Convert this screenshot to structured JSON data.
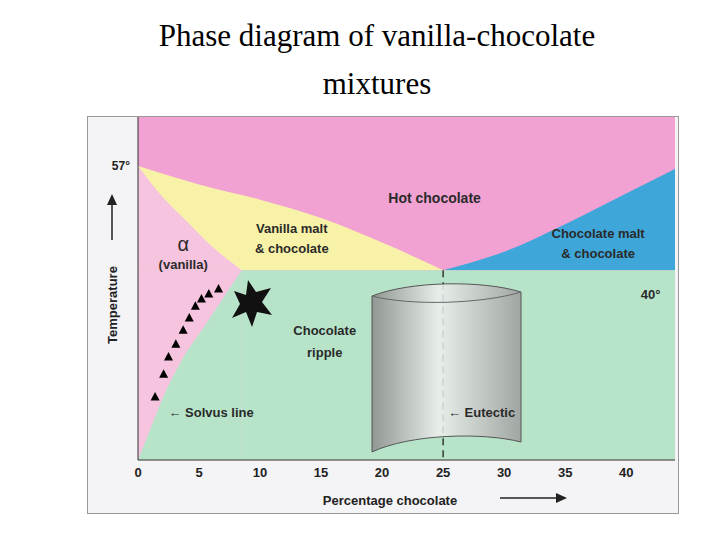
{
  "title": "Phase diagram of vanilla-chocolate mixtures",
  "chart_data": {
    "type": "phase_diagram",
    "x_label": "Percentage chocolate",
    "y_label": "Temperature",
    "xlim": [
      0,
      44
    ],
    "xticks": [
      0,
      5,
      10,
      15,
      20,
      25,
      30,
      35,
      40
    ],
    "ylim": [
      9,
      65
    ],
    "yticks": [
      {
        "value": 57,
        "label": "57°"
      }
    ],
    "regions": {
      "hot_chocolate": {
        "label": [
          "Hot chocolate"
        ],
        "color": "#f2a1d3",
        "x": 24.3,
        "y": 51.8
      },
      "vanilla_malt": {
        "label": [
          "Vanilla malt",
          "& chocolate"
        ],
        "color": "#f8f2a8",
        "x": 12.6,
        "y": 45.2
      },
      "chocolate_malt": {
        "label": [
          "Chocolate malt",
          "& chocolate"
        ],
        "color": "#3ea6d9",
        "x": 37.7,
        "y": 44.3
      },
      "alpha": {
        "label": [
          "α",
          "(vanilla)"
        ],
        "color": "#f7c4df",
        "x": 3.7,
        "y": 42.6
      },
      "chocolate_ripple": {
        "label": [
          "Chocolate",
          "ripple"
        ],
        "color": "#b7e4c9",
        "x": 15.3,
        "y": 28.3
      }
    },
    "liquidus_vanilla": {
      "x": [
        0,
        5,
        10,
        15,
        20,
        25
      ],
      "y": [
        57,
        54,
        51.5,
        48.5,
        44.5,
        40
      ]
    },
    "liquidus_chocolate": {
      "x": [
        25,
        30,
        35,
        40,
        44
      ],
      "y": [
        40,
        43,
        47.5,
        52.5,
        56.5
      ]
    },
    "solidus": {
      "x": [
        0,
        2,
        4,
        6,
        8.5
      ],
      "y": [
        57,
        52,
        48,
        44,
        40
      ]
    },
    "solvus": {
      "x": [
        0,
        1,
        2,
        3.5,
        5.5,
        7,
        8.5
      ],
      "y": [
        9,
        14,
        19,
        25,
        31,
        35.5,
        40
      ],
      "label": "← Solvus line",
      "label_x": 2.5,
      "label_y": 16.8
    },
    "eutectic": {
      "x": 25,
      "y": 40,
      "label": "← Eutectic",
      "label_x": 25.4,
      "label_y": 16.8,
      "line_style": "dashed"
    },
    "annotations": [
      {
        "text": "40°",
        "x": 42,
        "y": 36
      }
    ],
    "sprinkles": {
      "x": [
        1.4,
        2.1,
        2.5,
        3.1,
        3.7,
        4.2,
        4.7,
        5.2,
        5.8,
        6.6
      ],
      "y": [
        19.3,
        23.0,
        25.8,
        27.9,
        30.2,
        32.2,
        34.1,
        35.3,
        36.1,
        36.9
      ],
      "marker": "triangle",
      "color": "#000000"
    }
  }
}
